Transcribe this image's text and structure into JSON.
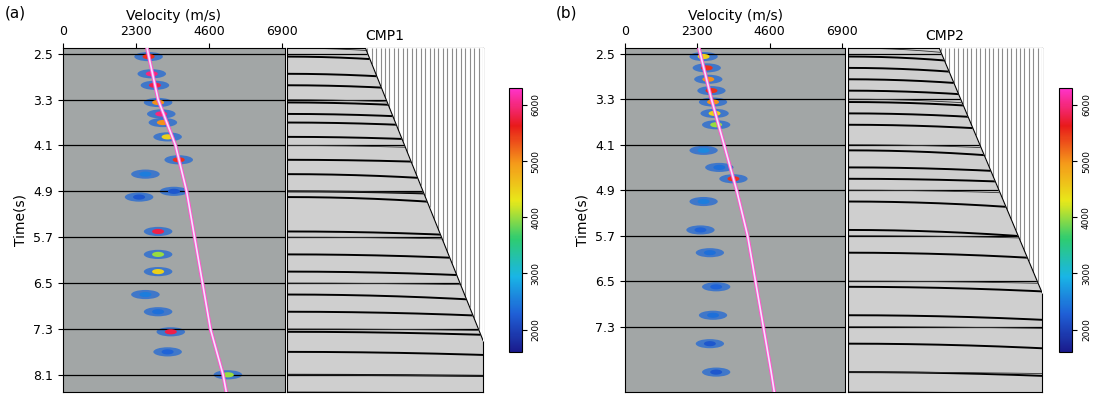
{
  "chart_data": [
    {
      "type": "velocity_spectrum",
      "panel_label": "(a)",
      "x_label": "Velocity (m/s)",
      "y_label": "Time(s)",
      "xlim": [
        0,
        7000
      ],
      "xticks": [
        0,
        2300,
        4600,
        6900
      ],
      "ylim": [
        8.4,
        2.4
      ],
      "yticks": [
        2.5,
        3.3,
        4.1,
        4.9,
        5.7,
        6.5,
        7.3,
        8.1
      ],
      "grid": true,
      "peaks": {
        "time": [
          2.55,
          2.85,
          3.05,
          3.35,
          3.55,
          3.7,
          3.95,
          4.35,
          4.6,
          4.9,
          5.0,
          5.6,
          6.0,
          6.3,
          6.7,
          7.0,
          7.35,
          7.7,
          8.1
        ],
        "velocity": [
          2700,
          2800,
          2900,
          3000,
          3100,
          3150,
          3300,
          3650,
          2600,
          3500,
          2400,
          3000,
          3000,
          3000,
          2600,
          3000,
          3400,
          3300,
          5200
        ],
        "semblance": [
          5500,
          6000,
          5800,
          5000,
          6000,
          5000,
          4500,
          5500,
          2500,
          2200,
          2200,
          5800,
          4000,
          4500,
          2500,
          2400,
          5800,
          2300,
          4000
        ]
      },
      "picked_velocity": {
        "time": [
          2.4,
          3.3,
          4.1,
          4.9,
          5.7,
          6.5,
          7.3,
          8.1,
          8.4
        ],
        "velocity": [
          2650,
          3000,
          3550,
          3900,
          4150,
          4400,
          4650,
          5050,
          5150
        ],
        "color": "#f2e6ff"
      },
      "gather": {
        "title": "CMP1",
        "offset_lim": [
          0,
          3000
        ],
        "tick_labels": false,
        "mute": {
          "offset": [
            1200,
            3000
          ],
          "time": [
            2.4,
            7.5
          ]
        }
      },
      "colorbar": {
        "range": [
          1600,
          6300
        ],
        "ticks": [
          2000,
          3000,
          4000,
          5000,
          6000
        ],
        "colors": [
          "#1a1a8c",
          "#1f5fd6",
          "#19b5e6",
          "#2ecc71",
          "#e8e81a",
          "#f59a1a",
          "#e81a1a",
          "#ff33cc"
        ]
      }
    },
    {
      "type": "velocity_spectrum",
      "panel_label": "(b)",
      "x_label": "Velocity (m/s)",
      "y_label": "Time(s)",
      "xlim": [
        0,
        7000
      ],
      "xticks": [
        0,
        2300,
        4600,
        6900
      ],
      "ylim": [
        8.45,
        2.4
      ],
      "yticks": [
        2.5,
        3.3,
        4.1,
        4.9,
        5.7,
        6.5,
        7.3
      ],
      "grid": true,
      "peaks": {
        "time": [
          2.55,
          2.75,
          2.95,
          3.15,
          3.35,
          3.55,
          3.75,
          4.2,
          4.5,
          4.7,
          5.1,
          5.6,
          6.0,
          6.6,
          7.1,
          7.6,
          8.1
        ],
        "velocity": [
          2500,
          2600,
          2650,
          2750,
          2800,
          2850,
          2900,
          2500,
          3000,
          3450,
          2500,
          2400,
          2700,
          2900,
          2800,
          2700,
          2900
        ],
        "semblance": [
          4500,
          5500,
          5000,
          5500,
          5000,
          4500,
          4000,
          2600,
          2400,
          5500,
          2500,
          2300,
          2400,
          2300,
          2400,
          2200,
          2200
        ]
      },
      "picked_velocity": {
        "time": [
          2.4,
          3.3,
          4.1,
          4.9,
          5.7,
          6.5,
          7.3,
          8.1,
          8.45
        ],
        "velocity": [
          2350,
          2750,
          3150,
          3550,
          3900,
          4150,
          4400,
          4650,
          4750
        ],
        "color": "#f2e6ff"
      },
      "gather": {
        "title": "CMP2",
        "offset_lim": [
          0,
          3000
        ],
        "tick_labels": false,
        "mute": {
          "offset": [
            1410,
            3000
          ],
          "time": [
            2.4,
            6.7
          ]
        }
      },
      "colorbar": {
        "range": [
          1600,
          6300
        ],
        "ticks": [
          2000,
          3000,
          4000,
          5000,
          6000
        ],
        "colors": [
          "#1a1a8c",
          "#1f5fd6",
          "#19b5e6",
          "#2ecc71",
          "#e8e81a",
          "#f59a1a",
          "#e81a1a",
          "#ff33cc"
        ]
      }
    }
  ]
}
